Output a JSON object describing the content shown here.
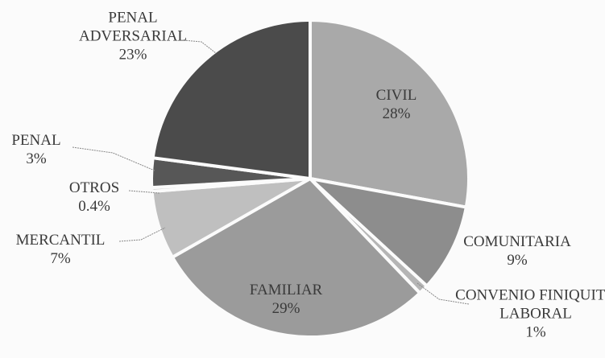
{
  "chart_data": {
    "type": "pie",
    "categories": [
      "CIVIL",
      "COMUNITARIA",
      "CONVENIO FINIQUITO LABORAL",
      "FAMILIAR",
      "MERCANTIL",
      "OTROS",
      "PENAL",
      "PENAL ADVERSARIAL"
    ],
    "values": [
      28,
      9,
      1,
      29,
      7,
      0.4,
      3,
      23
    ],
    "value_labels": [
      "28%",
      "9%",
      "1%",
      "29%",
      "7%",
      "0.4%",
      "3%",
      "23%"
    ],
    "colors": [
      "#a9a9a9",
      "#8d8d8d",
      "#b5b5b5",
      "#9b9b9b",
      "#bfbfbf",
      "#d2d2d2",
      "#575757",
      "#4b4b4b"
    ]
  }
}
